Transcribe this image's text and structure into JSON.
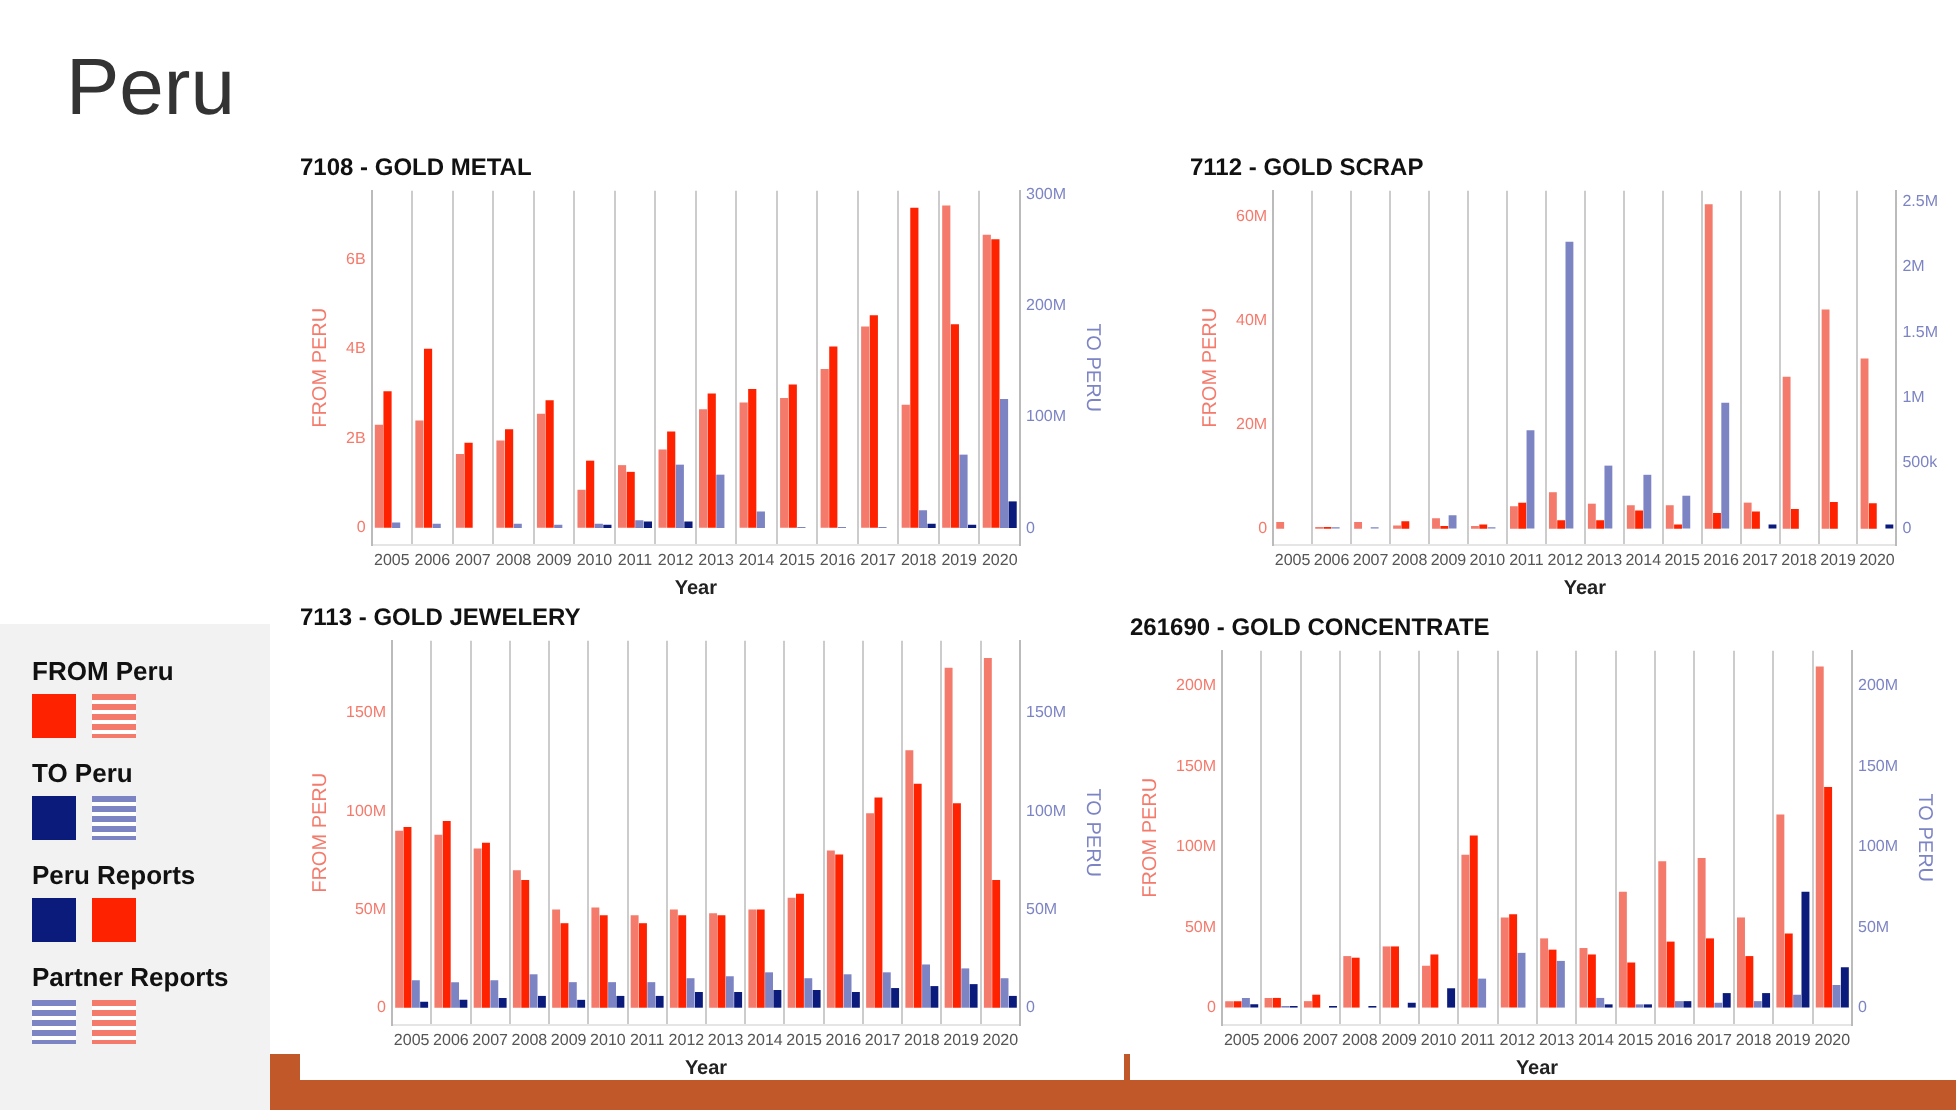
{
  "chart_data": [
    {
      "type": "bar",
      "title": "7108 - GOLD METAL",
      "xlabel": "Year",
      "ylabel": "FROM PERU",
      "y2label": "TO PERU",
      "grid": "x",
      "categories": [
        "2005",
        "2006",
        "2007",
        "2008",
        "2009",
        "2010",
        "2011",
        "2012",
        "2013",
        "2014",
        "2015",
        "2016",
        "2017",
        "2018",
        "2019",
        "2020"
      ],
      "ylim": [
        -380000000.0,
        7530000000.0
      ],
      "yticks": [
        {
          "value": 0,
          "label": "0"
        },
        {
          "value": 2000000000.0,
          "label": "2B"
        },
        {
          "value": 4000000000.0,
          "label": "4B"
        },
        {
          "value": 6000000000.0,
          "label": "6B"
        }
      ],
      "y2lim": [
        -15000000.0,
        303000000.0
      ],
      "y2ticks": [
        {
          "value": 0,
          "label": "0"
        },
        {
          "value": 100000000.0,
          "label": "100M"
        },
        {
          "value": 200000000.0,
          "label": "200M"
        },
        {
          "value": 300000000.0,
          "label": "300M"
        }
      ],
      "series": [
        {
          "color": "#f47a6c",
          "values": [
            2300000000.0,
            2400000000.0,
            1650000000.0,
            1950000000.0,
            2550000000.0,
            850000000.0,
            1400000000.0,
            1750000000.0,
            2650000000.0,
            2800000000.0,
            2900000000.0,
            3550000000.0,
            4500000000.0,
            2750000000.0,
            7200000000.0,
            6550000000.0
          ]
        },
        {
          "color": "#ff2200",
          "values": [
            3050000000.0,
            4000000000.0,
            1900000000.0,
            2200000000.0,
            2850000000.0,
            1500000000.0,
            1250000000.0,
            2150000000.0,
            3000000000.0,
            3100000000.0,
            3200000000.0,
            4050000000.0,
            4750000000.0,
            7150000000.0,
            4550000000.0,
            6450000000.0
          ]
        },
        {
          "color": "#7c84c4",
          "axis": "y2",
          "values": [
            5000000.0,
            4000000.0,
            0,
            4000000.0,
            3000000.0,
            4000000.0,
            7000000.0,
            57000000.0,
            48000000.0,
            15000000.0,
            1000000.0,
            1000000.0,
            1000000.0,
            16000000.0,
            66000000.0,
            116000000.0
          ]
        },
        {
          "color": "#0b1b7c",
          "axis": "y2",
          "values": [
            0,
            0,
            0,
            0,
            0,
            3000000.0,
            6000000.0,
            6000000.0,
            0,
            0,
            0,
            0,
            0,
            4000000.0,
            3000000.0,
            24000000.0
          ]
        }
      ]
    },
    {
      "type": "bar",
      "title": "7112 - GOLD SCRAP",
      "xlabel": "Year",
      "ylabel": "FROM PERU",
      "grid": "x",
      "categories": [
        "2005",
        "2006",
        "2007",
        "2008",
        "2009",
        "2010",
        "2011",
        "2012",
        "2013",
        "2014",
        "2015",
        "2016",
        "2017",
        "2018",
        "2019",
        "2020"
      ],
      "ylim": [
        -3100000.0,
        64900000.0
      ],
      "yticks": [
        {
          "value": 0,
          "label": "0"
        },
        {
          "value": 20000000.0,
          "label": "20M"
        },
        {
          "value": 40000000.0,
          "label": "40M"
        },
        {
          "value": 60000000.0,
          "label": "60M"
        }
      ],
      "y2lim": [
        -125000.0,
        2580000.0
      ],
      "y2ticks": [
        {
          "value": 0,
          "label": "0"
        },
        {
          "value": 500000.0,
          "label": "500k"
        },
        {
          "value": 1000000.0,
          "label": "1M"
        },
        {
          "value": 1500000.0,
          "label": "1.5M"
        },
        {
          "value": 2000000.0,
          "label": "2M"
        },
        {
          "value": 2500000.0,
          "label": "2.5M"
        }
      ],
      "series": [
        {
          "color": "#f47a6c",
          "values": [
            1300000.0,
            300000.0,
            1300000.0,
            600000.0,
            2000000.0,
            500000.0,
            4300000.0,
            7000000.0,
            4800000.0,
            4500000.0,
            4500000.0,
            62300000.0,
            5000000.0,
            29200000.0,
            42100000.0,
            32700000.0
          ]
        },
        {
          "color": "#ff2200",
          "values": [
            0,
            300000.0,
            0,
            1400000.0,
            500000.0,
            800000.0,
            5000000.0,
            1600000.0,
            1600000.0,
            3500000.0,
            800000.0,
            3000000.0,
            3300000.0,
            3800000.0,
            5100000.0,
            4900000.0
          ]
        },
        {
          "color": "#7c84c4",
          "axis": "y2",
          "values": [
            0,
            10000.0,
            10000.0,
            0,
            100000.0,
            10000.0,
            750000.0,
            2190000.0,
            480000.0,
            410000.0,
            250000.0,
            960000.0,
            0,
            0,
            0,
            0
          ]
        },
        {
          "color": "#0b1b7c",
          "axis": "y2",
          "values": [
            0,
            0,
            0,
            0,
            0,
            0,
            0,
            0,
            0,
            0,
            0,
            0,
            30000.0,
            0,
            0,
            30000.0
          ]
        }
      ]
    },
    {
      "type": "bar",
      "title": "7113 - GOLD JEWELERY",
      "xlabel": "Year",
      "ylabel": "FROM PERU",
      "y2label": "TO PERU",
      "grid": "x",
      "categories": [
        "2005",
        "2006",
        "2007",
        "2008",
        "2009",
        "2010",
        "2011",
        "2012",
        "2013",
        "2014",
        "2015",
        "2016",
        "2017",
        "2018",
        "2019",
        "2020"
      ],
      "ylim": [
        -8700000.0,
        186700000.0
      ],
      "yticks": [
        {
          "value": 0,
          "label": "0"
        },
        {
          "value": 50000000.0,
          "label": "50M"
        },
        {
          "value": 100000000.0,
          "label": "100M"
        },
        {
          "value": 150000000.0,
          "label": "150M"
        }
      ],
      "y2lim": [
        -8700000.0,
        186700000.0
      ],
      "y2ticks": [
        {
          "value": 0,
          "label": "0"
        },
        {
          "value": 50000000.0,
          "label": "50M"
        },
        {
          "value": 100000000.0,
          "label": "100M"
        },
        {
          "value": 150000000.0,
          "label": "150M"
        }
      ],
      "series": [
        {
          "color": "#f47a6c",
          "values": [
            90000000.0,
            88000000.0,
            81000000.0,
            70000000.0,
            50000000.0,
            51000000.0,
            47000000.0,
            50000000.0,
            48000000.0,
            50000000.0,
            56000000.0,
            80000000.0,
            99000000.0,
            131000000.0,
            173000000.0,
            178000000.0
          ]
        },
        {
          "color": "#ff2200",
          "values": [
            92000000.0,
            95000000.0,
            84000000.0,
            65000000.0,
            43000000.0,
            47000000.0,
            43000000.0,
            47000000.0,
            47000000.0,
            50000000.0,
            58000000.0,
            78000000.0,
            107000000.0,
            114000000.0,
            104000000.0,
            65000000.0
          ]
        },
        {
          "color": "#7c84c4",
          "axis": "y2",
          "values": [
            14000000.0,
            13000000.0,
            14000000.0,
            17000000.0,
            13000000.0,
            13000000.0,
            13000000.0,
            15000000.0,
            16000000.0,
            18000000.0,
            15000000.0,
            17000000.0,
            18000000.0,
            22000000.0,
            20000000.0,
            15000000.0
          ]
        },
        {
          "color": "#0b1b7c",
          "axis": "y2",
          "values": [
            3000000.0,
            4000000.0,
            5000000.0,
            6000000.0,
            4000000.0,
            6000000.0,
            6000000.0,
            8000000.0,
            8000000.0,
            9000000.0,
            9000000.0,
            8000000.0,
            10000000.0,
            11000000.0,
            12000000.0,
            6000000.0
          ]
        }
      ]
    },
    {
      "type": "bar",
      "title": "261690 - GOLD CONCENTRATE",
      "xlabel": "Year",
      "ylabel": "FROM PERU",
      "y2label": "TO PERU",
      "grid": "x",
      "categories": [
        "2005",
        "2006",
        "2007",
        "2008",
        "2009",
        "2010",
        "2011",
        "2012",
        "2013",
        "2014",
        "2015",
        "2016",
        "2017",
        "2018",
        "2019",
        "2020"
      ],
      "ylim": [
        -10700000.0,
        221700000.0
      ],
      "yticks": [
        {
          "value": 0,
          "label": "0"
        },
        {
          "value": 50000000.0,
          "label": "50M"
        },
        {
          "value": 100000000.0,
          "label": "100M"
        },
        {
          "value": 150000000.0,
          "label": "150M"
        },
        {
          "value": 200000000.0,
          "label": "200M"
        }
      ],
      "y2lim": [
        -10700000.0,
        221700000.0
      ],
      "y2ticks": [
        {
          "value": 0,
          "label": "0"
        },
        {
          "value": 50000000.0,
          "label": "50M"
        },
        {
          "value": 100000000.0,
          "label": "100M"
        },
        {
          "value": 150000000.0,
          "label": "150M"
        },
        {
          "value": 200000000.0,
          "label": "200M"
        }
      ],
      "series": [
        {
          "color": "#f47a6c",
          "values": [
            4000000.0,
            6000000.0,
            4000000.0,
            32000000.0,
            38000000.0,
            26000000.0,
            95000000.0,
            56000000.0,
            43000000.0,
            37000000.0,
            72000000.0,
            91000000.0,
            93000000.0,
            56000000.0,
            120000000.0,
            212000000.0
          ]
        },
        {
          "color": "#ff2200",
          "values": [
            4000000.0,
            6000000.0,
            8000000.0,
            31000000.0,
            38000000.0,
            33000000.0,
            107000000.0,
            58000000.0,
            36000000.0,
            33000000.0,
            28000000.0,
            41000000.0,
            43000000.0,
            32000000.0,
            46000000.0,
            137000000.0
          ]
        },
        {
          "color": "#7c84c4",
          "axis": "y2",
          "values": [
            6000000.0,
            1000000.0,
            0,
            0,
            0,
            0,
            18000000.0,
            34000000.0,
            29000000.0,
            6000000.0,
            2000000.0,
            4000000.0,
            3000000.0,
            4000000.0,
            8000000.0,
            14000000.0
          ]
        },
        {
          "color": "#0b1b7c",
          "axis": "y2",
          "values": [
            2000000.0,
            1000000.0,
            1000000.0,
            1000000.0,
            3000000.0,
            12000000.0,
            0,
            0,
            0,
            2000000.0,
            2000000.0,
            4000000.0,
            9000000.0,
            9000000.0,
            72000000.0,
            25000000.0
          ]
        }
      ]
    },
    {
      "type": "other",
      "title": "Peru",
      "annotations": [
        "FROM Peru",
        "TO Peru",
        "Peru Reports",
        "Partner Reports"
      ]
    }
  ]
}
